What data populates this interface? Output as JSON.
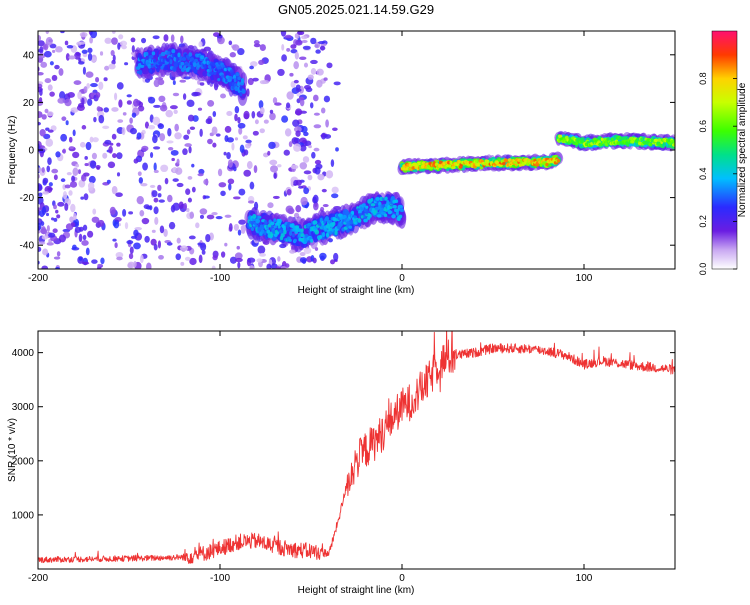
{
  "figure": {
    "title": "GN05.2025.021.14.59.G29"
  },
  "chart_data": [
    {
      "type": "heatmap",
      "xlabel": "Height of straight line (km)",
      "ylabel": "Frequency (Hz)",
      "xlim": [
        -200,
        150
      ],
      "ylim": [
        -50,
        50
      ],
      "xticks": [
        -200,
        -100,
        0,
        100
      ],
      "yticks": [
        -40,
        -20,
        0,
        20,
        40
      ],
      "colorbar": {
        "label": "Normalized spectral amplitude",
        "range": [
          0,
          1
        ],
        "ticks": [
          0.0,
          0.2,
          0.4,
          0.6,
          0.8
        ]
      },
      "traces": [
        {
          "x": [
            -145,
            -130,
            -115,
            -100,
            -92,
            -87
          ],
          "y": [
            36,
            38,
            37,
            33,
            29,
            26
          ],
          "amplitude": 0.3
        },
        {
          "x": [
            -84,
            -70,
            -55,
            -45,
            -35,
            -22,
            -15,
            -5,
            0
          ],
          "y": [
            -30,
            -33,
            -36,
            -33,
            -31,
            -27,
            -24,
            -24,
            -26
          ],
          "amplitude": 0.35
        },
        {
          "x": [
            0,
            20,
            50,
            80,
            86
          ],
          "y": [
            -7,
            -6.5,
            -5.5,
            -5,
            -4
          ],
          "amplitude": 0.75
        },
        {
          "x": [
            86,
            100,
            120,
            150
          ],
          "y": [
            5,
            3,
            4,
            3
          ],
          "amplitude": 0.6
        }
      ]
    },
    {
      "type": "line",
      "xlabel": "Height of straight line (km)",
      "ylabel": "SNR (10 * v/v)",
      "xlim": [
        -200,
        150
      ],
      "ylim": [
        0,
        4400
      ],
      "xticks": [
        -200,
        -100,
        0,
        100
      ],
      "yticks": [
        1000,
        2000,
        3000,
        4000
      ],
      "color": "#ee3333",
      "series": [
        {
          "x": [
            -200,
            -180,
            -160,
            -140,
            -120,
            -110,
            -100,
            -90,
            -80,
            -70,
            -60,
            -50,
            -40,
            -35,
            -30,
            -25,
            -20,
            -15,
            -10,
            -5,
            0,
            5,
            10,
            15,
            20,
            25,
            30,
            40,
            50,
            60,
            70,
            80,
            90,
            100,
            110,
            120,
            130,
            140,
            150
          ],
          "values": [
            170,
            180,
            190,
            200,
            220,
            280,
            380,
            500,
            520,
            420,
            360,
            330,
            290,
            900,
            1600,
            2000,
            2200,
            2350,
            2550,
            2800,
            3000,
            3100,
            3300,
            3500,
            3800,
            3900,
            3950,
            4000,
            4080,
            4080,
            4070,
            4030,
            3950,
            3780,
            3850,
            3800,
            3750,
            3720,
            3680
          ]
        }
      ]
    }
  ]
}
